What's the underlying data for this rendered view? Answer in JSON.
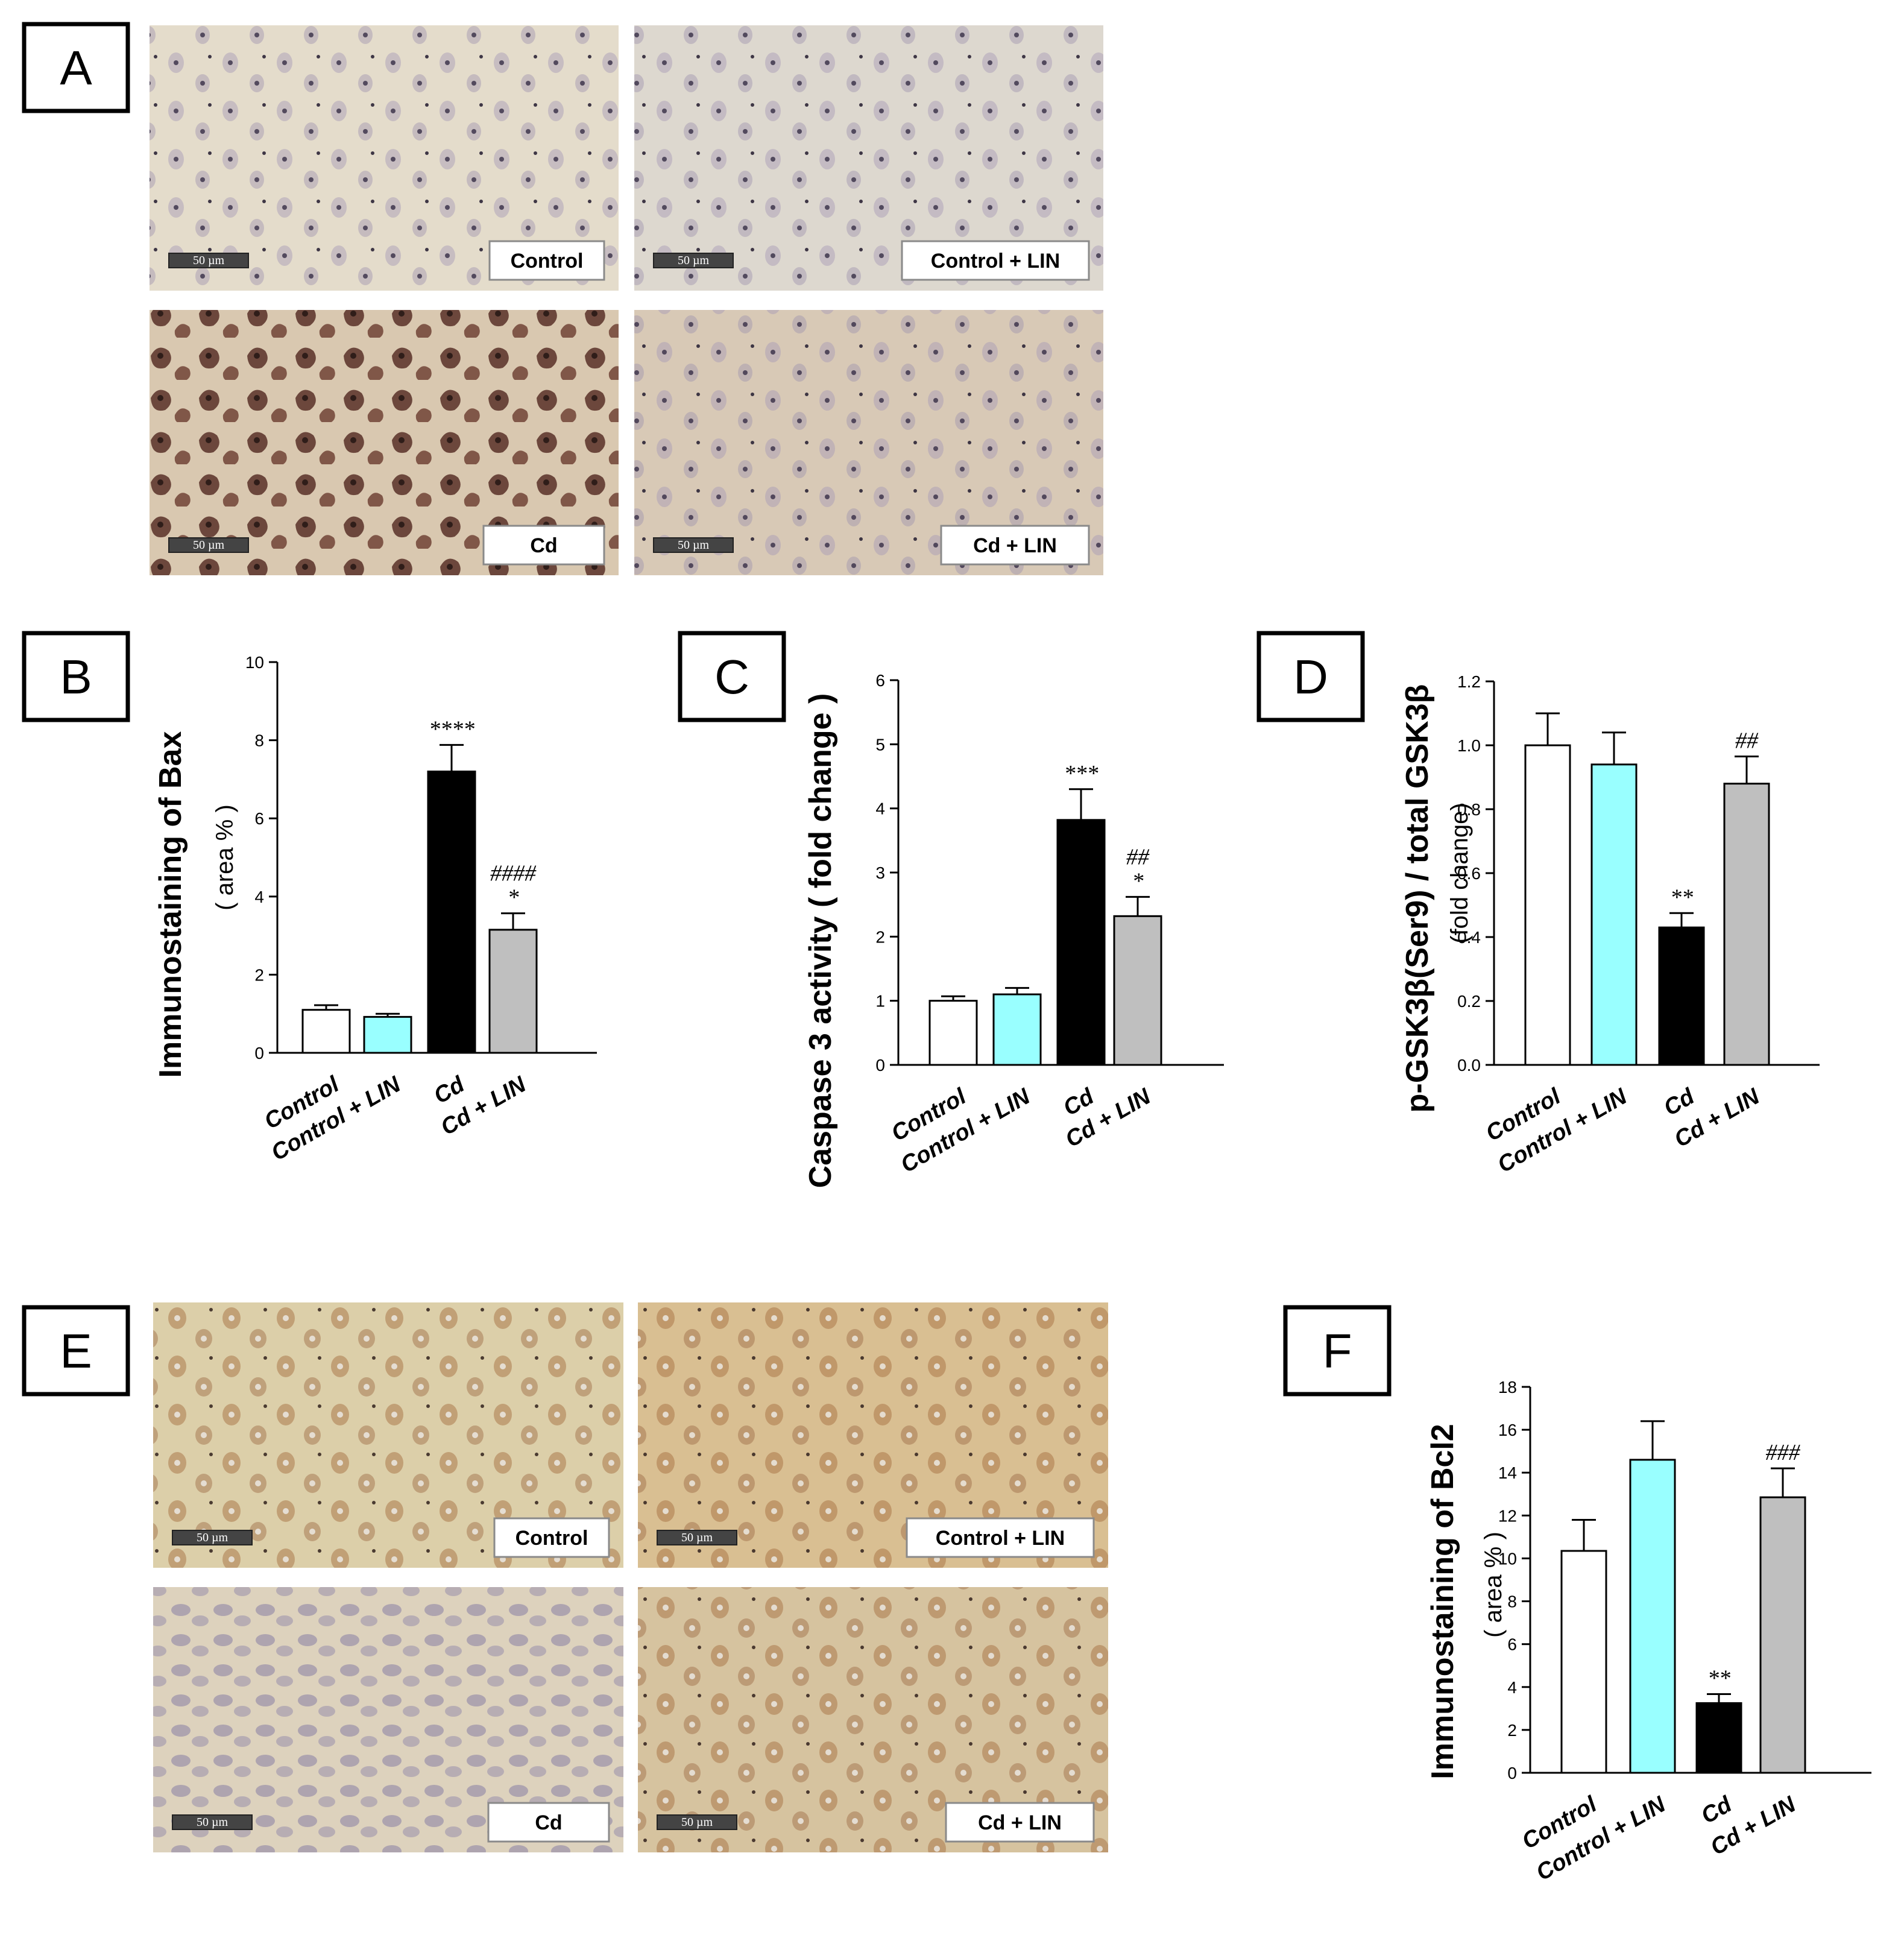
{
  "panels": [
    {
      "id": "A",
      "letter": "A"
    },
    {
      "id": "B",
      "letter": "B"
    },
    {
      "id": "C",
      "letter": "C"
    },
    {
      "id": "D",
      "letter": "D"
    },
    {
      "id": "E",
      "letter": "E"
    },
    {
      "id": "F",
      "letter": "F"
    }
  ],
  "micrographs": {
    "scale_text": "50 µm",
    "A": [
      {
        "label": "Control",
        "tone": "#e4dccb",
        "stain": "#b5a8c4"
      },
      {
        "label": "Control + LIN",
        "tone": "#ddd8cf",
        "stain": "#a9a4c4"
      },
      {
        "label": "Cd",
        "tone": "#d9c8b0",
        "stain": "#5a2c22"
      },
      {
        "label": "Cd + LIN",
        "tone": "#d8c9b6",
        "stain": "#b9aab8"
      }
    ],
    "E": [
      {
        "label": "Control",
        "tone": "#dccfa9",
        "stain": "#b398a3"
      },
      {
        "label": "Control + LIN",
        "tone": "#d9bf92",
        "stain": "#b07a4e"
      },
      {
        "label": "Cd",
        "tone": "#ddd2bd",
        "stain": "#8d84a8"
      },
      {
        "label": "Cd + LIN",
        "tone": "#d6c39f",
        "stain": "#a68566"
      }
    ]
  },
  "chart_data": [
    {
      "panel": "B",
      "type": "bar",
      "categories": [
        "Control",
        "Control + LIN",
        "Cd",
        "Cd + LIN"
      ],
      "values": [
        1.1,
        0.92,
        7.2,
        3.15
      ],
      "errors": [
        0.12,
        0.08,
        0.68,
        0.42
      ],
      "colors": [
        "#ffffff",
        "#99ffff",
        "#000000",
        "#bfbfbf"
      ],
      "ylabel": "Immunostaining of Bax",
      "ylabel2": "( area % )",
      "ylim": [
        0,
        10
      ],
      "yticks": [
        "0",
        "2",
        "4",
        "6",
        "8",
        "10"
      ],
      "annotations": [
        {
          "bar": 2,
          "lines": [
            "****"
          ]
        },
        {
          "bar": 3,
          "lines": [
            "####",
            "*"
          ]
        }
      ]
    },
    {
      "panel": "C",
      "type": "bar",
      "categories": [
        "Control",
        "Control + LIN",
        "Cd",
        "Cd + LIN"
      ],
      "values": [
        1.0,
        1.1,
        3.82,
        2.32
      ],
      "errors": [
        0.07,
        0.1,
        0.48,
        0.3
      ],
      "colors": [
        "#ffffff",
        "#99ffff",
        "#000000",
        "#bfbfbf"
      ],
      "ylabel": "Caspase 3 activity ( fold change )",
      "ylabel2": "",
      "ylim": [
        0,
        6
      ],
      "yticks": [
        "0",
        "1",
        "2",
        "3",
        "4",
        "5",
        "6"
      ],
      "annotations": [
        {
          "bar": 2,
          "lines": [
            "***"
          ]
        },
        {
          "bar": 3,
          "lines": [
            "##",
            "*"
          ]
        }
      ]
    },
    {
      "panel": "D",
      "type": "bar",
      "categories": [
        "Control",
        "Control + LIN",
        "Cd",
        "Cd + LIN"
      ],
      "values": [
        1.0,
        0.94,
        0.43,
        0.88
      ],
      "errors": [
        0.1,
        0.1,
        0.045,
        0.085
      ],
      "colors": [
        "#ffffff",
        "#99ffff",
        "#000000",
        "#bfbfbf"
      ],
      "ylabel": "p-GSK3β(Ser9) / total GSK3β",
      "ylabel2": "(fold change)",
      "ylim": [
        0,
        1.2
      ],
      "yticks": [
        "0.0",
        "0.2",
        "0.4",
        "0.6",
        "0.8",
        "1.0",
        "1.2"
      ],
      "annotations": [
        {
          "bar": 2,
          "lines": [
            "**"
          ]
        },
        {
          "bar": 3,
          "lines": [
            "##"
          ]
        }
      ]
    },
    {
      "panel": "F",
      "type": "bar",
      "categories": [
        "Control",
        "Control + LIN",
        "Cd",
        "Cd + LIN"
      ],
      "values": [
        10.35,
        14.6,
        3.25,
        12.85
      ],
      "errors": [
        1.45,
        1.8,
        0.42,
        1.35
      ],
      "colors": [
        "#ffffff",
        "#99ffff",
        "#000000",
        "#bfbfbf"
      ],
      "ylabel": "Immunostaining of Bcl2",
      "ylabel2": "( area % )",
      "ylim": [
        0,
        18
      ],
      "yticks": [
        "0",
        "2",
        "4",
        "6",
        "8",
        "10",
        "12",
        "14",
        "16",
        "18"
      ],
      "annotations": [
        {
          "bar": 2,
          "lines": [
            "**"
          ]
        },
        {
          "bar": 3,
          "lines": [
            "###"
          ]
        }
      ]
    }
  ]
}
